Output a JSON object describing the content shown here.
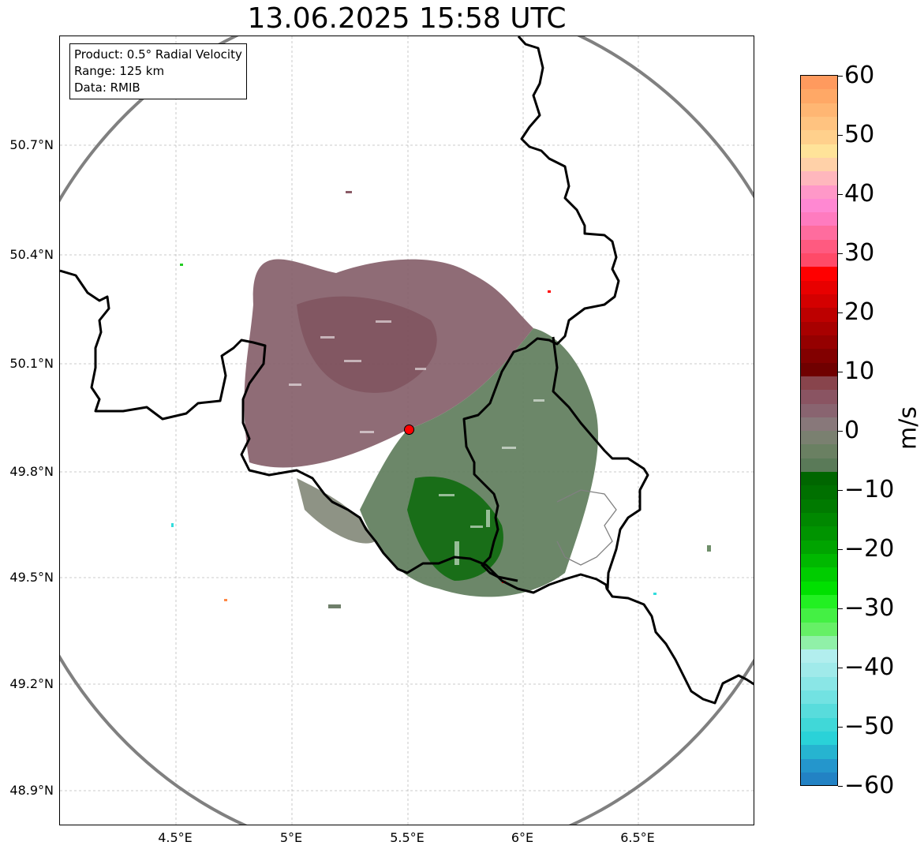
{
  "title": "13.06.2025 15:58 UTC",
  "info": {
    "product": "Product: 0.5° Radial Velocity",
    "range": "Range: 125 km",
    "data": "Data: RMIB"
  },
  "axes": {
    "lat_ticks": [
      "50.7°N",
      "50.4°N",
      "50.1°N",
      "49.8°N",
      "49.5°N",
      "49.2°N",
      "48.9°N"
    ],
    "lon_ticks": [
      "4.5°E",
      "5°E",
      "5.5°E",
      "6°E",
      "6.5°E"
    ]
  },
  "radar": {
    "name": "radar-site",
    "lat": 49.91,
    "lon": 5.5,
    "range_km": 125
  },
  "colorbar": {
    "unit": "m/s",
    "min": -60,
    "max": 60,
    "tick_labels": [
      "60",
      "50",
      "40",
      "30",
      "20",
      "10",
      "0",
      "−10",
      "−20",
      "−30",
      "−40",
      "−50",
      "−60"
    ],
    "colors_top_to_bottom": [
      "#ff9a5e",
      "#ffa866",
      "#ffb673",
      "#ffc380",
      "#ffd08c",
      "#ffe399",
      "#ffd1a8",
      "#ffb7bd",
      "#ff98c8",
      "#ff88d2",
      "#ff7bbf",
      "#ff6c9e",
      "#ff5a80",
      "#ff4a68",
      "#ff0000",
      "#e80000",
      "#d40000",
      "#bd0000",
      "#a80000",
      "#950000",
      "#820000",
      "#700000",
      "#88444c",
      "#8a5462",
      "#896470",
      "#88787a",
      "#7a8070",
      "#6a8062",
      "#5a7a58",
      "#006600",
      "#007000",
      "#007a00",
      "#008800",
      "#009400",
      "#00a400",
      "#00b800",
      "#00cc00",
      "#00e000",
      "#22f022",
      "#44f044",
      "#66f066",
      "#90f0a8",
      "#b2eeee",
      "#a0eaea",
      "#8ae6e6",
      "#72e2e2",
      "#58dcdc",
      "#40d8d8",
      "#2ad2d8",
      "#26b4d0",
      "#2496cc",
      "#2282c4"
    ]
  }
}
